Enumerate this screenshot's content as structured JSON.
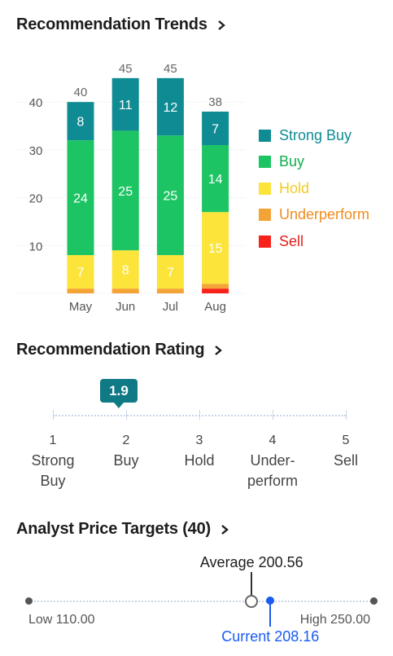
{
  "trends_section": {
    "title": "Recommendation Trends"
  },
  "rating_section": {
    "title": "Recommendation Rating",
    "value": "1.9",
    "value_numeric": 1.9,
    "scale": [
      {
        "num": "1",
        "label": "Strong Buy",
        "label_lines": [
          "Strong",
          "Buy"
        ]
      },
      {
        "num": "2",
        "label": "Buy",
        "label_lines": [
          "Buy"
        ]
      },
      {
        "num": "3",
        "label": "Hold",
        "label_lines": [
          "Hold"
        ]
      },
      {
        "num": "4",
        "label": "Under-perform",
        "label_lines": [
          "Under-",
          "perform"
        ]
      },
      {
        "num": "5",
        "label": "Sell",
        "label_lines": [
          "Sell"
        ]
      }
    ]
  },
  "targets_section": {
    "title": "Analyst Price Targets (40)",
    "low_label": "Low 110.00",
    "high_label": "High 250.00",
    "average_label": "Average 200.56",
    "current_label": "Current 208.16",
    "low": 110.0,
    "high": 250.0,
    "average": 200.56,
    "current": 208.16
  },
  "chart_data": {
    "type": "bar",
    "stacked": true,
    "categories": [
      "May",
      "Jun",
      "Jul",
      "Aug"
    ],
    "totals": [
      40,
      45,
      45,
      38
    ],
    "yticks": [
      10,
      20,
      30,
      40
    ],
    "ylim": [
      0,
      45
    ],
    "legend_position": "right",
    "series": [
      {
        "name": "Sell",
        "color": "#f7231b",
        "text_color": "#e0201a",
        "values": [
          0,
          0,
          0,
          1
        ]
      },
      {
        "name": "Underperform",
        "color": "#f4a336",
        "text_color": "#f08c1e",
        "values": [
          1,
          1,
          1,
          1
        ]
      },
      {
        "name": "Hold",
        "color": "#fce43b",
        "text_color": "#f2cc22",
        "values": [
          7,
          8,
          7,
          15
        ]
      },
      {
        "name": "Buy",
        "color": "#1cc463",
        "text_color": "#0dae4c",
        "values": [
          24,
          25,
          25,
          14
        ]
      },
      {
        "name": "Strong Buy",
        "color": "#0f8b93",
        "text_color": "#0f8b93",
        "values": [
          8,
          11,
          12,
          7
        ]
      }
    ]
  }
}
